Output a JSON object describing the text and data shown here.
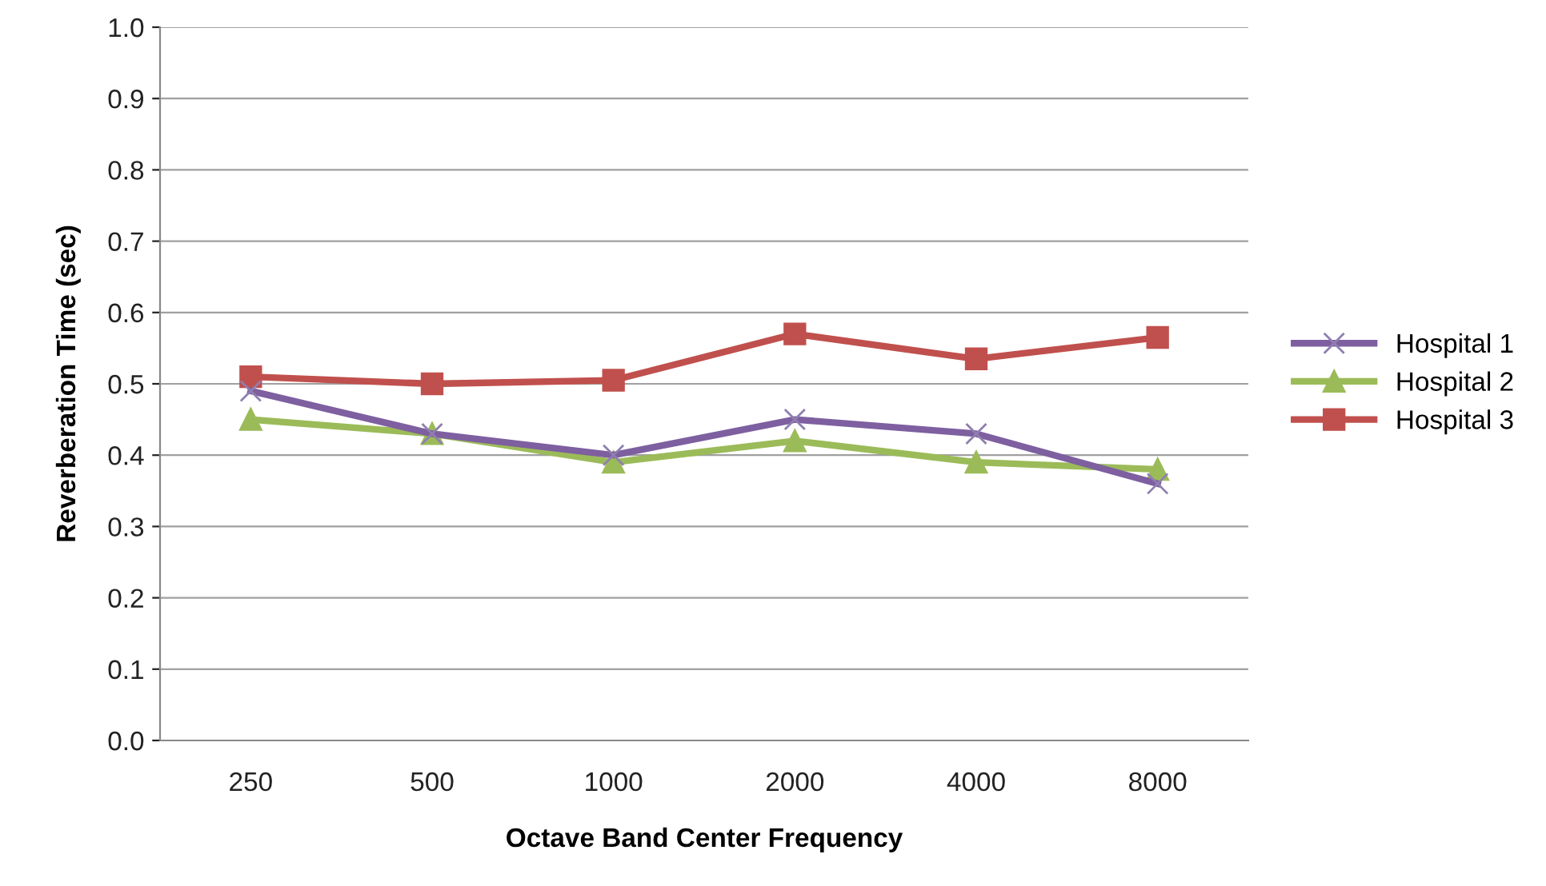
{
  "chart_data": {
    "type": "line",
    "xlabel": "Octave Band Center Frequency",
    "ylabel": "Reverberation Time (sec)",
    "categories": [
      "250",
      "500",
      "1000",
      "2000",
      "4000",
      "8000"
    ],
    "series": [
      {
        "name": "Hospital 1",
        "color": "#7e5fa0",
        "marker": "cross",
        "values": [
          0.49,
          0.43,
          0.4,
          0.45,
          0.43,
          0.36
        ]
      },
      {
        "name": "Hospital 2",
        "color": "#9bbb59",
        "marker": "triangle",
        "values": [
          0.45,
          0.43,
          0.39,
          0.42,
          0.39,
          0.38
        ]
      },
      {
        "name": "Hospital 3",
        "color": "#c0504d",
        "marker": "square",
        "values": [
          0.51,
          0.5,
          0.505,
          0.57,
          0.535,
          0.565
        ]
      }
    ],
    "ylim": [
      0,
      1
    ],
    "yticks": [
      {
        "value": 0,
        "label": "0.0"
      },
      {
        "value": 0.1,
        "label": "0.1"
      },
      {
        "value": 0.2,
        "label": "0.2"
      },
      {
        "value": 0.3,
        "label": "0.3"
      },
      {
        "value": 0.4,
        "label": "0.4"
      },
      {
        "value": 0.5,
        "label": "0.5"
      },
      {
        "value": 0.6,
        "label": "0.6"
      },
      {
        "value": 0.7,
        "label": "0.7"
      },
      {
        "value": 0.8,
        "label": "0.8"
      },
      {
        "value": 0.9,
        "label": "0.9"
      },
      {
        "value": 1,
        "label": "1.0"
      }
    ],
    "grid": "y",
    "legend": "right"
  }
}
